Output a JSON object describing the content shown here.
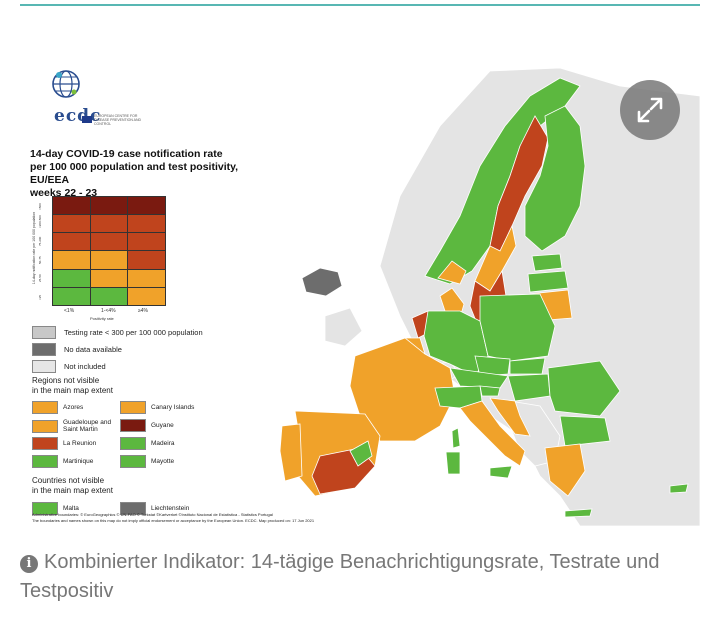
{
  "logo": {
    "name": "ecdc",
    "subtitle": "EUROPEAN CENTRE FOR DISEASE PREVENTION AND CONTROL"
  },
  "title": {
    "line1": "14-day COVID-19 case notification rate",
    "line2": "per 100 000 population and test positivity, EU/EEA",
    "line3": "weeks 22 - 23"
  },
  "matrix": {
    "y_label": "14-day notification rate per 100 000 population",
    "y_ticks": [
      ">500",
      "<200-500",
      "75-200",
      "50-75",
      "25-50",
      "<25"
    ],
    "x_label": "Positivity rate",
    "x_ticks": [
      "<1%",
      "1-<4%",
      "≥4%"
    ],
    "cells": [
      [
        "dark-red",
        "dark-red",
        "dark-red"
      ],
      [
        "red",
        "red",
        "red"
      ],
      [
        "red",
        "red",
        "red"
      ],
      [
        "orange",
        "orange",
        "red"
      ],
      [
        "green",
        "orange",
        "orange"
      ],
      [
        "green",
        "green",
        "orange"
      ]
    ]
  },
  "legend": {
    "testing_rate": "Testing rate < 300 per 100 000 population",
    "no_data": "No data available",
    "not_included": "Not included"
  },
  "regions_not_visible": {
    "heading1": "Regions not visible",
    "heading2": "in the main map extent",
    "items": [
      {
        "label": "Azores",
        "color": "orange"
      },
      {
        "label": "Canary Islands",
        "color": "orange"
      },
      {
        "label": "Guadeloupe and Saint Martin",
        "color": "orange"
      },
      {
        "label": "Guyane",
        "color": "dark-red"
      },
      {
        "label": "La Reunion",
        "color": "red"
      },
      {
        "label": "Madeira",
        "color": "green"
      },
      {
        "label": "Martinique",
        "color": "green"
      },
      {
        "label": "Mayotte",
        "color": "green"
      }
    ]
  },
  "countries_not_visible": {
    "heading1": "Countries not visible",
    "heading2": "in the main map extent",
    "items": [
      {
        "label": "Malta",
        "color": "green"
      },
      {
        "label": "Liechtenstein",
        "color": "no-data"
      }
    ]
  },
  "footnote": {
    "line1": "Administrative boundaries: © EuroGeographics © UN-FAO © Turkstat ©Kartverket ©Instituto Nacional de Estatística - Statistics Portugal",
    "line2": "The boundaries and names shown on this map do not imply official endorsement or acceptance by the European Union. ECDC. Map produced on: 17 Jun 2021"
  },
  "colors": {
    "green": "#5cb83f",
    "orange": "#f0a22a",
    "red": "#c0441d",
    "dark-red": "#7a1a10",
    "testing_rate": "#c8c8c8",
    "no_data": "#6d6d6d",
    "not_included": "#e6e6e6",
    "accent_line": "#58b7b3"
  },
  "expand_button": {
    "icon": "expand-icon"
  },
  "caption": {
    "icon": "info-icon",
    "text": "Kombinierter Indikator: 14-tägige Benachrichtigungsrate, Testrate und Testpositiv"
  }
}
